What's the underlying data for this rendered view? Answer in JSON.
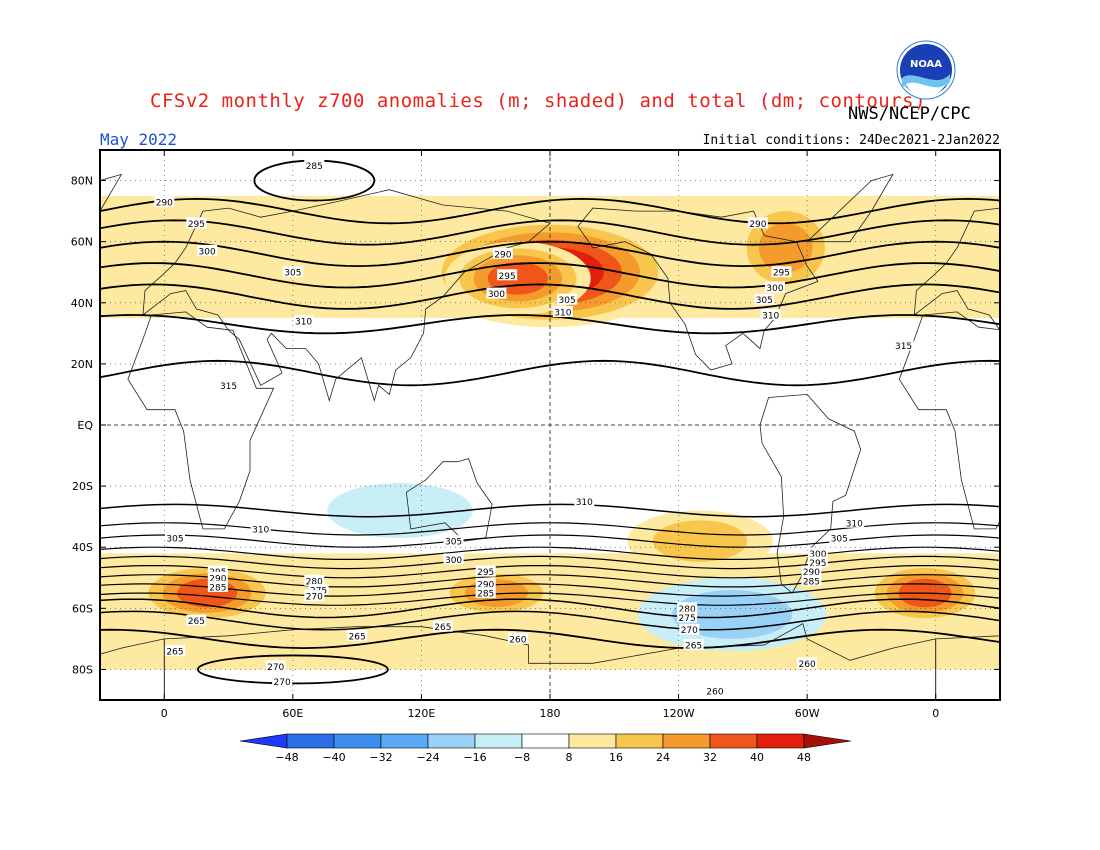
{
  "title": "CFSv2 monthly z700 anomalies (m; shaded) and total (dm; contours)",
  "agency": "NWS/NCEP/CPC",
  "logo_text": "NOAA",
  "month_label": "May 2022",
  "initial_conditions": "Initial conditions: 24Dec2021-2Jan2022",
  "map": {
    "lat_labels": [
      "80N",
      "60N",
      "40N",
      "20N",
      "EQ",
      "20S",
      "40S",
      "60S",
      "80S"
    ],
    "lat_values": [
      80,
      60,
      40,
      20,
      0,
      -20,
      -40,
      -60,
      -80
    ],
    "lon_labels": [
      "0",
      "60E",
      "120E",
      "180",
      "120W",
      "60W",
      "0"
    ],
    "lon_values": [
      0,
      60,
      120,
      180,
      240,
      300,
      360
    ],
    "lon_range": [
      -30,
      390
    ],
    "lat_range": [
      -90,
      90
    ]
  },
  "colorbar": {
    "labels": [
      "-48",
      "-40",
      "-32",
      "-24",
      "-16",
      "-8",
      "8",
      "16",
      "24",
      "32",
      "40",
      "48"
    ],
    "colors": [
      "#1e3cff",
      "#2a6fe6",
      "#3c8ff0",
      "#5aaaf5",
      "#9ad2f7",
      "#c8eef8",
      "#ffffff",
      "#fde9a0",
      "#f9c64d",
      "#f59a2c",
      "#f0561a",
      "#e0200c",
      "#a50f08"
    ]
  },
  "anomalies": [
    {
      "lon": 180,
      "lat": 50,
      "rx": 55,
      "ry": 16,
      "level": 48
    },
    {
      "lon": 165,
      "lat": 48,
      "rx": 30,
      "ry": 10,
      "level": 32
    },
    {
      "lon": 290,
      "lat": 58,
      "rx": 20,
      "ry": 14,
      "level": 24
    },
    {
      "lon": 20,
      "lat": -55,
      "rx": 30,
      "ry": 8,
      "level": 32
    },
    {
      "lon": 155,
      "lat": -55,
      "rx": 25,
      "ry": 6,
      "level": 24
    },
    {
      "lon": 355,
      "lat": -55,
      "rx": 25,
      "ry": 8,
      "level": 32
    },
    {
      "lon": 265,
      "lat": -62,
      "rx": 40,
      "ry": 10,
      "level": -16
    },
    {
      "lon": 110,
      "lat": -28,
      "rx": 30,
      "ry": 7,
      "level": -8
    },
    {
      "lon": 250,
      "lat": -38,
      "rx": 30,
      "ry": 8,
      "level": 16
    }
  ],
  "contour_labels": [
    {
      "text": "285",
      "lon": 70,
      "lat": 85
    },
    {
      "text": "290",
      "lon": 0,
      "lat": 73
    },
    {
      "text": "295",
      "lon": 15,
      "lat": 66
    },
    {
      "text": "300",
      "lon": 20,
      "lat": 57
    },
    {
      "text": "305",
      "lon": 60,
      "lat": 50
    },
    {
      "text": "310",
      "lon": 65,
      "lat": 34
    },
    {
      "text": "315",
      "lon": 30,
      "lat": 13
    },
    {
      "text": "290",
      "lon": 158,
      "lat": 56
    },
    {
      "text": "295",
      "lon": 160,
      "lat": 49
    },
    {
      "text": "300",
      "lon": 155,
      "lat": 43
    },
    {
      "text": "305",
      "lon": 188,
      "lat": 41
    },
    {
      "text": "310",
      "lon": 186,
      "lat": 37
    },
    {
      "text": "290",
      "lon": 277,
      "lat": 66
    },
    {
      "text": "295",
      "lon": 288,
      "lat": 50
    },
    {
      "text": "300",
      "lon": 285,
      "lat": 45
    },
    {
      "text": "305",
      "lon": 280,
      "lat": 41
    },
    {
      "text": "310",
      "lon": 283,
      "lat": 36
    },
    {
      "text": "315",
      "lon": 345,
      "lat": 26
    },
    {
      "text": "310",
      "lon": 196,
      "lat": -25
    },
    {
      "text": "310",
      "lon": 45,
      "lat": -34
    },
    {
      "text": "305",
      "lon": 5,
      "lat": -37
    },
    {
      "text": "305",
      "lon": 135,
      "lat": -38
    },
    {
      "text": "300",
      "lon": 135,
      "lat": -44
    },
    {
      "text": "295",
      "lon": 25,
      "lat": -48
    },
    {
      "text": "290",
      "lon": 25,
      "lat": -50
    },
    {
      "text": "285",
      "lon": 25,
      "lat": -53
    },
    {
      "text": "280",
      "lon": 70,
      "lat": -51
    },
    {
      "text": "275",
      "lon": 72,
      "lat": -54
    },
    {
      "text": "270",
      "lon": 70,
      "lat": -56
    },
    {
      "text": "265",
      "lon": 15,
      "lat": -64
    },
    {
      "text": "295",
      "lon": 150,
      "lat": -48
    },
    {
      "text": "290",
      "lon": 150,
      "lat": -52
    },
    {
      "text": "285",
      "lon": 150,
      "lat": -55
    },
    {
      "text": "265",
      "lon": 130,
      "lat": -66
    },
    {
      "text": "265",
      "lon": 90,
      "lat": -69
    },
    {
      "text": "260",
      "lon": 165,
      "lat": -70
    },
    {
      "text": "265",
      "lon": 5,
      "lat": -74
    },
    {
      "text": "270",
      "lon": 52,
      "lat": -79
    },
    {
      "text": "270",
      "lon": 55,
      "lat": -84
    },
    {
      "text": "280",
      "lon": 244,
      "lat": -60
    },
    {
      "text": "275",
      "lon": 244,
      "lat": -63
    },
    {
      "text": "270",
      "lon": 245,
      "lat": -67
    },
    {
      "text": "265",
      "lon": 247,
      "lat": -72
    },
    {
      "text": "260",
      "lon": 300,
      "lat": -78
    },
    {
      "text": "260",
      "lon": 257,
      "lat": -87
    },
    {
      "text": "310",
      "lon": 322,
      "lat": -32
    },
    {
      "text": "305",
      "lon": 315,
      "lat": -37
    },
    {
      "text": "300",
      "lon": 305,
      "lat": -42
    },
    {
      "text": "295",
      "lon": 305,
      "lat": -45
    },
    {
      "text": "290",
      "lon": 302,
      "lat": -48
    },
    {
      "text": "285",
      "lon": 302,
      "lat": -51
    }
  ]
}
